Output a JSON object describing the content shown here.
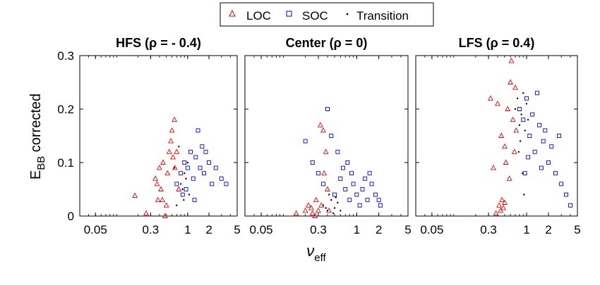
{
  "legend": {
    "items": [
      {
        "label": "LOC",
        "marker": "triangle",
        "color": "#e00000"
      },
      {
        "label": "SOC",
        "marker": "square",
        "color": "#0000e0"
      },
      {
        "label": "Transition",
        "marker": "dot",
        "color": "#000000"
      }
    ],
    "placement": "top-center"
  },
  "axes": {
    "xlabel_main": "ν",
    "xlabel_sub": "eff",
    "ylabel_main": "E",
    "ylabel_sub": "BB",
    "ylabel_rest": " corrected"
  },
  "chart_data": [
    {
      "type": "scatter",
      "title": "HFS (ρ = - 0.4)",
      "xscale": "log",
      "xlim": [
        0.03,
        5
      ],
      "ylim": [
        0,
        0.3
      ],
      "xticks": [
        "0.05",
        "0.3",
        "1",
        "2",
        "5"
      ],
      "xtick_values": [
        0.05,
        0.3,
        1,
        2,
        5
      ],
      "yticks": [
        "0",
        "0.1",
        "0.2",
        "0.3"
      ],
      "ytick_values": [
        0,
        0.1,
        0.2,
        0.3
      ],
      "series": [
        {
          "name": "LOC",
          "color": "#e00000",
          "marker": "triangle",
          "points": [
            [
              0.18,
              0.038
            ],
            [
              0.26,
              0.005
            ],
            [
              0.35,
              0.07
            ],
            [
              0.38,
              0.03
            ],
            [
              0.4,
              0.09
            ],
            [
              0.42,
              0.05
            ],
            [
              0.45,
              0.1
            ],
            [
              0.5,
              0.02
            ],
            [
              0.55,
              0.12
            ],
            [
              0.58,
              0.14
            ],
            [
              0.6,
              0.16
            ],
            [
              0.65,
              0.18
            ],
            [
              0.7,
              0.12
            ],
            [
              0.75,
              0.05
            ],
            [
              0.48,
              0.0
            ],
            [
              0.52,
              0.08
            ],
            [
              0.62,
              0.11
            ],
            [
              0.44,
              0.03
            ],
            [
              0.37,
              0.06
            ],
            [
              0.66,
              0.09
            ]
          ]
        },
        {
          "name": "SOC",
          "color": "#0000e0",
          "marker": "square",
          "points": [
            [
              0.7,
              0.06
            ],
            [
              0.8,
              0.08
            ],
            [
              0.9,
              0.1
            ],
            [
              1.0,
              0.09
            ],
            [
              1.1,
              0.12
            ],
            [
              1.2,
              0.07
            ],
            [
              1.3,
              0.11
            ],
            [
              1.5,
              0.09
            ],
            [
              1.7,
              0.08
            ],
            [
              2.0,
              0.1
            ],
            [
              2.5,
              0.09
            ],
            [
              3.0,
              0.07
            ],
            [
              3.5,
              0.06
            ],
            [
              1.4,
              0.16
            ],
            [
              1.6,
              0.13
            ],
            [
              0.95,
              0.05
            ],
            [
              1.8,
              0.12
            ],
            [
              2.2,
              0.06
            ],
            [
              0.85,
              0.04
            ],
            [
              1.25,
              0.03
            ]
          ]
        },
        {
          "name": "Transition",
          "color": "#000000",
          "marker": "dot",
          "points": [
            [
              0.7,
              0.02
            ],
            [
              0.8,
              0.06
            ],
            [
              0.9,
              0.08
            ],
            [
              1.0,
              0.1
            ],
            [
              0.75,
              0.13
            ],
            [
              0.85,
              0.05
            ],
            [
              0.95,
              0.07
            ],
            [
              1.05,
              0.04
            ],
            [
              0.65,
              0.09
            ],
            [
              0.88,
              0.03
            ]
          ]
        }
      ]
    },
    {
      "type": "scatter",
      "title": "Center (ρ = 0)",
      "xscale": "log",
      "xlim": [
        0.03,
        5
      ],
      "ylim": [
        0,
        0.3
      ],
      "xticks": [
        "0.05",
        "0.3",
        "1",
        "2",
        "5"
      ],
      "xtick_values": [
        0.05,
        0.3,
        1,
        2,
        5
      ],
      "yticks": [],
      "ytick_values": [
        0,
        0.1,
        0.2,
        0.3
      ],
      "series": [
        {
          "name": "LOC",
          "color": "#e00000",
          "marker": "triangle",
          "points": [
            [
              0.15,
              0.005
            ],
            [
              0.2,
              0.01
            ],
            [
              0.22,
              0.02
            ],
            [
              0.25,
              0.005
            ],
            [
              0.28,
              0.03
            ],
            [
              0.3,
              0.01
            ],
            [
              0.32,
              0.17
            ],
            [
              0.35,
              0.16
            ],
            [
              0.38,
              0.12
            ],
            [
              0.4,
              0.05
            ],
            [
              0.27,
              0.0
            ],
            [
              0.33,
              0.02
            ],
            [
              0.36,
              0.08
            ],
            [
              0.42,
              0.01
            ],
            [
              0.24,
              0.015
            ]
          ]
        },
        {
          "name": "SOC",
          "color": "#0000e0",
          "marker": "square",
          "points": [
            [
              0.2,
              0.14
            ],
            [
              0.25,
              0.1
            ],
            [
              0.3,
              0.08
            ],
            [
              0.4,
              0.2
            ],
            [
              0.45,
              0.15
            ],
            [
              0.5,
              0.04
            ],
            [
              0.6,
              0.07
            ],
            [
              0.7,
              0.05
            ],
            [
              0.8,
              0.03
            ],
            [
              0.9,
              0.06
            ],
            [
              1.0,
              0.04
            ],
            [
              1.2,
              0.05
            ],
            [
              1.4,
              0.03
            ],
            [
              1.6,
              0.06
            ],
            [
              1.8,
              0.04
            ],
            [
              2.0,
              0.03
            ],
            [
              0.55,
              0.12
            ],
            [
              0.65,
              0.09
            ],
            [
              1.1,
              0.02
            ],
            [
              1.5,
              0.08
            ],
            [
              0.75,
              0.1
            ],
            [
              0.35,
              0.06
            ],
            [
              1.3,
              0.07
            ],
            [
              2.1,
              0.02
            ],
            [
              0.85,
              0.08
            ]
          ]
        },
        {
          "name": "Transition",
          "color": "#000000",
          "marker": "dot",
          "points": [
            [
              0.35,
              0.02
            ],
            [
              0.4,
              0.01
            ],
            [
              0.45,
              0.03
            ],
            [
              0.5,
              0.015
            ],
            [
              0.55,
              0.025
            ],
            [
              0.6,
              0.01
            ],
            [
              0.42,
              0.04
            ],
            [
              0.48,
              0.005
            ],
            [
              0.38,
              0.015
            ],
            [
              0.52,
              0.035
            ]
          ]
        }
      ]
    },
    {
      "type": "scatter",
      "title": "LFS (ρ = 0.4)",
      "xscale": "log",
      "xlim": [
        0.03,
        5
      ],
      "ylim": [
        0,
        0.3
      ],
      "xticks": [
        "0.05",
        "0.3",
        "1",
        "2",
        "5"
      ],
      "xtick_values": [
        0.05,
        0.3,
        1,
        2,
        5
      ],
      "yticks": [],
      "ytick_values": [
        0,
        0.1,
        0.2,
        0.3
      ],
      "series": [
        {
          "name": "LOC",
          "color": "#e00000",
          "marker": "triangle",
          "points": [
            [
              0.32,
              0.22
            ],
            [
              0.4,
              0.21
            ],
            [
              0.45,
              0.15
            ],
            [
              0.5,
              0.13
            ],
            [
              0.52,
              0.1
            ],
            [
              0.55,
              0.2
            ],
            [
              0.6,
              0.25
            ],
            [
              0.62,
              0.29
            ],
            [
              0.65,
              0.18
            ],
            [
              0.7,
              0.24
            ],
            [
              0.72,
              0.16
            ],
            [
              0.35,
              0.09
            ],
            [
              0.42,
              0.02
            ],
            [
              0.44,
              0.01
            ],
            [
              0.46,
              0.03
            ],
            [
              0.48,
              0.015
            ],
            [
              0.5,
              0.025
            ],
            [
              0.58,
              0.07
            ],
            [
              0.68,
              0.12
            ],
            [
              0.38,
              0.005
            ]
          ]
        },
        {
          "name": "SOC",
          "color": "#0000e0",
          "marker": "square",
          "points": [
            [
              0.8,
              0.2
            ],
            [
              0.9,
              0.18
            ],
            [
              1.0,
              0.22
            ],
            [
              1.1,
              0.15
            ],
            [
              1.2,
              0.19
            ],
            [
              1.3,
              0.12
            ],
            [
              1.5,
              0.17
            ],
            [
              1.7,
              0.14
            ],
            [
              2.0,
              0.1
            ],
            [
              2.5,
              0.08
            ],
            [
              3.0,
              0.06
            ],
            [
              3.5,
              0.04
            ],
            [
              4.0,
              0.02
            ],
            [
              1.4,
              0.23
            ],
            [
              1.6,
              0.09
            ],
            [
              1.8,
              0.16
            ],
            [
              2.2,
              0.13
            ],
            [
              1.05,
              0.11
            ],
            [
              0.95,
              0.08
            ],
            [
              2.8,
              0.15
            ]
          ]
        },
        {
          "name": "Transition",
          "color": "#000000",
          "marker": "dot",
          "points": [
            [
              0.7,
              0.2
            ],
            [
              0.75,
              0.22
            ],
            [
              0.8,
              0.17
            ],
            [
              0.85,
              0.19
            ],
            [
              0.9,
              0.23
            ],
            [
              0.95,
              0.16
            ],
            [
              1.0,
              0.21
            ],
            [
              0.78,
              0.12
            ],
            [
              0.88,
              0.08
            ],
            [
              0.92,
              0.04
            ],
            [
              1.05,
              0.18
            ],
            [
              0.82,
              0.14
            ]
          ]
        }
      ]
    }
  ]
}
